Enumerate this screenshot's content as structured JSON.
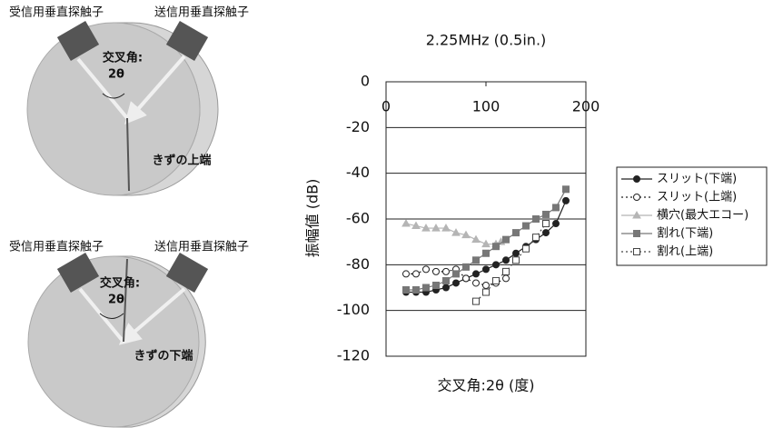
{
  "diagrams": [
    {
      "receiver": "受信用垂直探触子",
      "transmitter": "送信用垂直探触子",
      "angle_label": "交叉角:",
      "angle_symbol": "2θ",
      "flaw_label": "きずの上端"
    },
    {
      "receiver": "受信用垂直探触子",
      "transmitter": "送信用垂直探触子",
      "angle_label": "交叉角:",
      "angle_symbol": "2θ",
      "flaw_label": "きずの下端"
    }
  ],
  "chart_data": {
    "type": "line",
    "title": "2.25MHz (0.5in.)",
    "x_label": "交叉角:2θ (度)",
    "y_label": "振幅値 (dB)",
    "xlim": [
      0,
      200
    ],
    "xticks": [
      0,
      100,
      200
    ],
    "ylim": [
      -120,
      0
    ],
    "yticks": [
      0,
      -20,
      -40,
      -60,
      -80,
      -100,
      -120
    ],
    "grid": true,
    "legend": "right",
    "series": [
      {
        "name": "スリット(下端)",
        "color": "#222222",
        "marker": "circle",
        "filled": true,
        "dashed": false,
        "x": [
          20,
          30,
          40,
          50,
          60,
          70,
          80,
          90,
          100,
          110,
          120,
          130,
          140,
          150,
          160,
          170,
          180
        ],
        "values": [
          -92,
          -92,
          -92,
          -91,
          -90,
          -88,
          -86,
          -84,
          -82,
          -80,
          -78,
          -75,
          -72,
          -69,
          -66,
          -62,
          -52
        ]
      },
      {
        "name": "スリット(上端)",
        "color": "#222222",
        "marker": "circle",
        "filled": false,
        "dashed": true,
        "x": [
          20,
          30,
          40,
          50,
          60,
          70,
          80,
          90,
          100,
          110,
          120
        ],
        "values": [
          -84,
          -84,
          -82,
          -83,
          -83,
          -82,
          -86,
          -88,
          -89,
          -88,
          -86
        ]
      },
      {
        "name": "横穴(最大エコー)",
        "color": "#b5b5b5",
        "marker": "triangle",
        "filled": true,
        "dashed": false,
        "x": [
          20,
          30,
          40,
          50,
          60,
          70,
          80,
          90,
          100,
          110,
          115
        ],
        "values": [
          -62,
          -63,
          -64,
          -64,
          -64,
          -66,
          -67,
          -69,
          -71,
          -71,
          -70
        ]
      },
      {
        "name": "割れ(下端)",
        "color": "#777777",
        "marker": "square",
        "filled": true,
        "dashed": false,
        "x": [
          20,
          30,
          40,
          50,
          60,
          70,
          80,
          90,
          100,
          110,
          120,
          130,
          140,
          150,
          160,
          170,
          180
        ],
        "values": [
          -91,
          -91,
          -90,
          -89,
          -87,
          -84,
          -81,
          -78,
          -75,
          -72,
          -69,
          -66,
          -63,
          -60,
          -58,
          -55,
          -47
        ]
      },
      {
        "name": "割れ(上端)",
        "color": "#444444",
        "marker": "square",
        "filled": false,
        "dashed": true,
        "x": [
          90,
          100,
          110,
          120,
          130,
          140,
          150,
          160
        ],
        "values": [
          -96,
          -92,
          -87,
          -83,
          -78,
          -73,
          -68,
          -62
        ]
      }
    ]
  }
}
